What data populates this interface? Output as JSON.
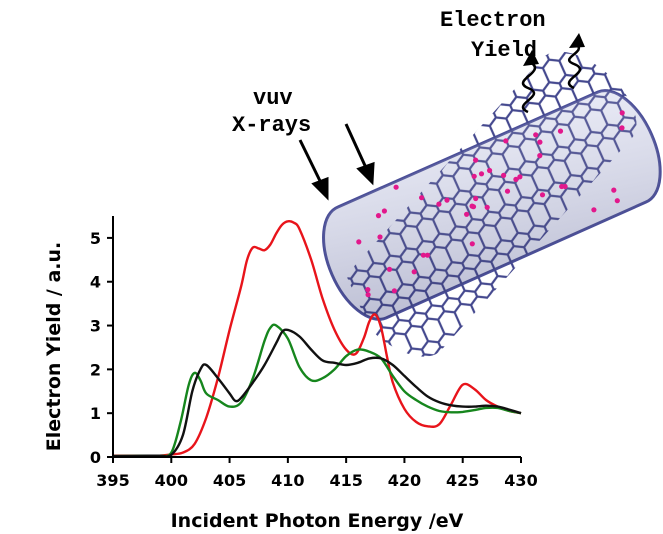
{
  "chart_data": {
    "type": "line",
    "title": "",
    "xlabel": "Incident Photon Energy /eV",
    "ylabel": "Electron Yield / a.u.",
    "xlim": [
      395,
      430
    ],
    "ylim": [
      0,
      5.5
    ],
    "xticks": [
      395,
      400,
      405,
      410,
      415,
      420,
      425,
      430
    ],
    "yticks": [
      0,
      1,
      2,
      3,
      4,
      5
    ],
    "grid": false,
    "legend": "none",
    "series": [
      {
        "color": "#e8141b",
        "x": [
          395,
          397,
          399,
          400,
          401,
          402,
          403,
          404,
          405,
          406,
          406.5,
          407,
          407.5,
          408,
          408.5,
          409,
          409.5,
          410,
          410.5,
          411,
          412,
          413,
          414,
          415,
          415.8,
          416.5,
          417,
          417.5,
          418,
          418.5,
          419,
          420,
          421,
          422,
          423,
          424,
          425,
          426,
          427,
          428,
          429,
          430
        ],
        "y": [
          0.03,
          0.03,
          0.03,
          0.06,
          0.1,
          0.3,
          0.9,
          1.8,
          2.9,
          3.9,
          4.5,
          4.78,
          4.76,
          4.72,
          4.85,
          5.1,
          5.3,
          5.38,
          5.35,
          5.2,
          4.5,
          3.6,
          2.9,
          2.45,
          2.35,
          2.7,
          3.1,
          3.25,
          2.95,
          2.3,
          1.7,
          1.1,
          0.8,
          0.7,
          0.75,
          1.2,
          1.65,
          1.55,
          1.3,
          1.15,
          1.05,
          1.0
        ]
      },
      {
        "color": "#16861d",
        "x": [
          395,
          398,
          399,
          400,
          400.8,
          401.5,
          402,
          402.5,
          403,
          404,
          405,
          406,
          407,
          408,
          408.5,
          409,
          410,
          411,
          412,
          413,
          414,
          415,
          416,
          417,
          418,
          419,
          420,
          421,
          422,
          423,
          424,
          425,
          426,
          427,
          428,
          429,
          430
        ],
        "y": [
          0.02,
          0.03,
          0.03,
          0.1,
          0.8,
          1.65,
          1.92,
          1.75,
          1.45,
          1.3,
          1.15,
          1.25,
          1.8,
          2.65,
          2.95,
          3.0,
          2.7,
          2.05,
          1.75,
          1.8,
          2.0,
          2.3,
          2.45,
          2.4,
          2.25,
          1.85,
          1.5,
          1.3,
          1.15,
          1.05,
          1.02,
          1.03,
          1.07,
          1.12,
          1.12,
          1.05,
          1.0
        ]
      },
      {
        "color": "#111111",
        "x": [
          395,
          398,
          399,
          400,
          401,
          401.8,
          402.5,
          403,
          404,
          405,
          405.5,
          406,
          407,
          408,
          409,
          409.5,
          410,
          411,
          412,
          413,
          414,
          415,
          416,
          417,
          418,
          419,
          420,
          421,
          422,
          423,
          424,
          425,
          426,
          427,
          428,
          429,
          430
        ],
        "y": [
          0.02,
          0.03,
          0.03,
          0.05,
          0.5,
          1.5,
          2.0,
          2.1,
          1.8,
          1.45,
          1.28,
          1.35,
          1.7,
          2.1,
          2.6,
          2.85,
          2.9,
          2.75,
          2.45,
          2.2,
          2.15,
          2.1,
          2.15,
          2.25,
          2.25,
          2.1,
          1.85,
          1.6,
          1.38,
          1.25,
          1.18,
          1.15,
          1.15,
          1.17,
          1.15,
          1.08,
          1.0
        ]
      }
    ]
  },
  "annotations": {
    "vuv": "vuv",
    "xrays": "X-rays",
    "electron": "Electron",
    "yield": "Yield"
  },
  "nanotube": {
    "tube_color": "#4b4f98",
    "dopant_color": "#e2188c"
  }
}
